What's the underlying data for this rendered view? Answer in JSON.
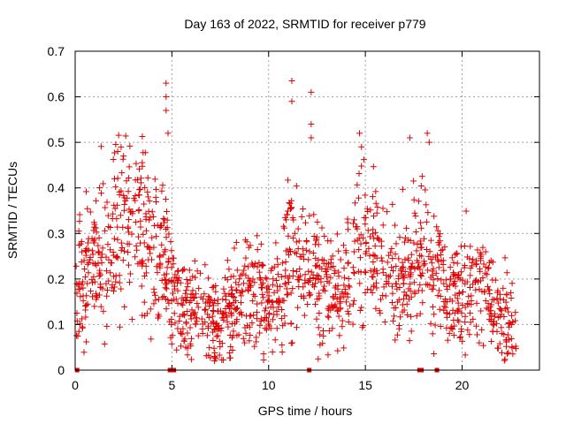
{
  "chart_data": {
    "type": "scatter",
    "title": "Day 163 of 2022, SRMTID for receiver p779",
    "xlabel": "GPS time / hours",
    "ylabel": "SRMTID / TECUs",
    "xlim": [
      0,
      24
    ],
    "ylim": [
      0,
      0.7
    ],
    "xticks": [
      0,
      5,
      10,
      15,
      20
    ],
    "yticks": [
      0,
      0.1,
      0.2,
      0.3,
      0.4,
      0.5,
      0.6,
      0.7
    ],
    "xtick_labels": [
      "0",
      "5",
      "10",
      "15",
      "20"
    ],
    "ytick_labels": [
      "0",
      "0.1",
      "0.2",
      "0.3",
      "0.4",
      "0.5",
      "0.6",
      "0.7"
    ],
    "grid": true,
    "marker": "+",
    "color": "#e00000",
    "approx_profile": [
      {
        "x": 0.0,
        "y": 0.17
      },
      {
        "x": 0.5,
        "y": 0.21
      },
      {
        "x": 1.0,
        "y": 0.24
      },
      {
        "x": 1.5,
        "y": 0.26
      },
      {
        "x": 2.0,
        "y": 0.32
      },
      {
        "x": 2.5,
        "y": 0.33
      },
      {
        "x": 3.0,
        "y": 0.31
      },
      {
        "x": 3.5,
        "y": 0.3
      },
      {
        "x": 4.0,
        "y": 0.26
      },
      {
        "x": 4.5,
        "y": 0.24
      },
      {
        "x": 5.0,
        "y": 0.18
      },
      {
        "x": 5.5,
        "y": 0.16
      },
      {
        "x": 6.0,
        "y": 0.14
      },
      {
        "x": 6.5,
        "y": 0.12
      },
      {
        "x": 7.0,
        "y": 0.11
      },
      {
        "x": 7.5,
        "y": 0.1
      },
      {
        "x": 8.0,
        "y": 0.13
      },
      {
        "x": 8.5,
        "y": 0.17
      },
      {
        "x": 9.0,
        "y": 0.18
      },
      {
        "x": 9.5,
        "y": 0.16
      },
      {
        "x": 10.0,
        "y": 0.14
      },
      {
        "x": 10.5,
        "y": 0.16
      },
      {
        "x": 11.0,
        "y": 0.24
      },
      {
        "x": 11.5,
        "y": 0.26
      },
      {
        "x": 12.0,
        "y": 0.23
      },
      {
        "x": 12.5,
        "y": 0.2
      },
      {
        "x": 13.0,
        "y": 0.18
      },
      {
        "x": 13.5,
        "y": 0.17
      },
      {
        "x": 14.0,
        "y": 0.18
      },
      {
        "x": 14.5,
        "y": 0.27
      },
      {
        "x": 15.0,
        "y": 0.29
      },
      {
        "x": 15.5,
        "y": 0.27
      },
      {
        "x": 16.0,
        "y": 0.23
      },
      {
        "x": 16.5,
        "y": 0.2
      },
      {
        "x": 17.0,
        "y": 0.19
      },
      {
        "x": 17.5,
        "y": 0.24
      },
      {
        "x": 18.0,
        "y": 0.26
      },
      {
        "x": 18.5,
        "y": 0.22
      },
      {
        "x": 19.0,
        "y": 0.19
      },
      {
        "x": 19.5,
        "y": 0.16
      },
      {
        "x": 20.0,
        "y": 0.17
      },
      {
        "x": 20.5,
        "y": 0.19
      },
      {
        "x": 21.0,
        "y": 0.2
      },
      {
        "x": 21.5,
        "y": 0.15
      },
      {
        "x": 22.0,
        "y": 0.11
      },
      {
        "x": 22.5,
        "y": 0.1
      },
      {
        "x": 22.8,
        "y": 0.09
      }
    ],
    "outliers": [
      {
        "x": 4.7,
        "y": 0.63
      },
      {
        "x": 4.7,
        "y": 0.6
      },
      {
        "x": 4.7,
        "y": 0.57
      },
      {
        "x": 4.8,
        "y": 0.52
      },
      {
        "x": 11.2,
        "y": 0.635
      },
      {
        "x": 11.2,
        "y": 0.59
      },
      {
        "x": 12.2,
        "y": 0.61
      },
      {
        "x": 12.2,
        "y": 0.54
      },
      {
        "x": 12.2,
        "y": 0.51
      },
      {
        "x": 14.7,
        "y": 0.52
      },
      {
        "x": 14.8,
        "y": 0.49
      },
      {
        "x": 17.3,
        "y": 0.51
      },
      {
        "x": 18.2,
        "y": 0.52
      },
      {
        "x": 18.3,
        "y": 0.5
      },
      {
        "x": 2.2,
        "y": 0.48
      },
      {
        "x": 2.5,
        "y": 0.47
      },
      {
        "x": 10.2,
        "y": 0.04
      },
      {
        "x": 7.2,
        "y": 0.03
      }
    ],
    "zero_markers_x": [
      0.1,
      4.9,
      5.1,
      12.1,
      17.8,
      17.9,
      18.7
    ]
  }
}
